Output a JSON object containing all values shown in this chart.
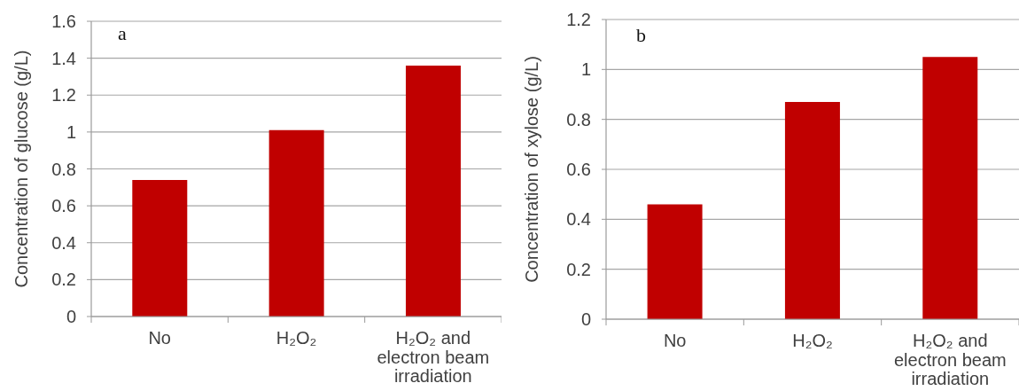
{
  "chart_data": [
    {
      "type": "bar",
      "categories": [
        "No",
        "H₂O₂",
        "H₂O₂ and electron beam irradiation"
      ],
      "values": [
        0.74,
        1.01,
        1.36
      ],
      "color": "#c00000",
      "ylabel": "Concentration of glucose (g/L)",
      "ylim": [
        0,
        1.6
      ],
      "yticks": [
        0,
        0.2,
        0.4,
        0.6,
        0.8,
        1,
        1.2,
        1.4,
        1.6
      ],
      "grid": "y",
      "annotations": [
        "a"
      ]
    },
    {
      "type": "bar",
      "categories": [
        "No",
        "H₂O₂",
        "H₂O₂ and electron beam irradiation"
      ],
      "values": [
        0.46,
        0.87,
        1.05
      ],
      "color": "#c00000",
      "ylabel": "Concentration of xylose (g/L)",
      "ylim": [
        0,
        1.2
      ],
      "yticks": [
        0,
        0.2,
        0.4,
        0.6,
        0.8,
        1,
        1.2
      ],
      "grid": "y",
      "annotations": [
        "b"
      ]
    }
  ]
}
